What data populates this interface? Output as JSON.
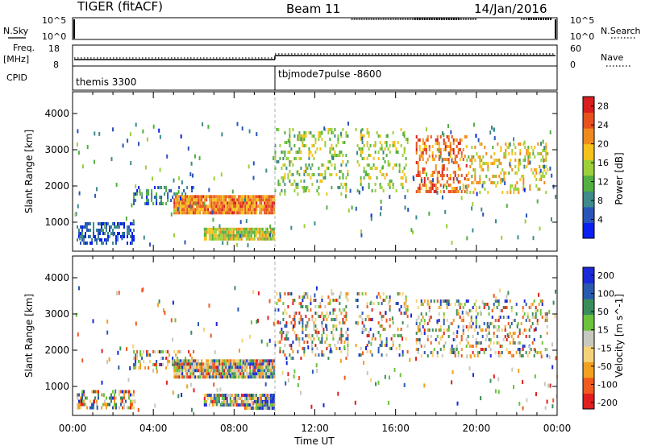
{
  "header": {
    "title": "TIGER (fitACF)",
    "beam": "Beam 11",
    "date": "14/Jan/2016"
  },
  "nsky_panel": {
    "left_label": "N.Sky",
    "ticks": [
      "10^5",
      "10^0"
    ],
    "right_label": "N.Search",
    "right_ticks": [
      "10^5",
      "10^0"
    ]
  },
  "freq_panel": {
    "left_label_line1": "Freq.",
    "left_label_line2": "[MHz]",
    "ticks": [
      "18",
      "8"
    ],
    "right_label": "Nave",
    "right_ticks": [
      "60",
      "0"
    ]
  },
  "cpid_panel": {
    "label": "CPID",
    "modes": [
      {
        "name": "themis 3300",
        "start_hour": 0
      },
      {
        "name": "tbjmode7pulse -8600",
        "start_hour": 10
      }
    ]
  },
  "time_axis": {
    "xlabel": "Time UT",
    "ticks": [
      "00:00",
      "04:00",
      "08:00",
      "12:00",
      "16:00",
      "20:00",
      "00:00"
    ]
  },
  "chart_data": [
    {
      "type": "heatmap",
      "title": "",
      "xlabel": "Time UT",
      "ylabel": "Slant Range [km]",
      "xlim": [
        0,
        24
      ],
      "ylim": [
        200,
        4600
      ],
      "yticks": [
        1000,
        2000,
        3000,
        4000
      ],
      "colorbar": {
        "label": "Power [dB]",
        "ticks": [
          "4",
          "8",
          "12",
          "16",
          "20",
          "24",
          "28"
        ],
        "range": [
          0,
          30
        ],
        "colors": [
          "#0a1ff0",
          "#2a55b8",
          "#3f8a8a",
          "#52b040",
          "#9ccf3a",
          "#f5c21a",
          "#f08a1e",
          "#e8501e",
          "#d81e1e"
        ]
      },
      "bands": [
        {
          "t0": 0.2,
          "t1": 3.0,
          "r0": 400,
          "r1": 1000,
          "level": 0.18,
          "density": 0.55
        },
        {
          "t0": 3.0,
          "t1": 6.0,
          "r0": 1500,
          "r1": 2000,
          "level": 0.25,
          "density": 0.35
        },
        {
          "t0": 5.0,
          "t1": 10.0,
          "r0": 1300,
          "r1": 1750,
          "level": 0.75,
          "density": 0.95
        },
        {
          "t0": 6.5,
          "t1": 10.0,
          "r0": 550,
          "r1": 850,
          "level": 0.55,
          "density": 0.9
        },
        {
          "t0": 10.0,
          "t1": 13.6,
          "r0": 1800,
          "r1": 3600,
          "level": 0.45,
          "density": 0.25
        },
        {
          "t0": 14.0,
          "t1": 16.6,
          "r0": 1900,
          "r1": 3600,
          "level": 0.5,
          "density": 0.2
        },
        {
          "t0": 17.0,
          "t1": 19.5,
          "r0": 1800,
          "r1": 3400,
          "level": 0.78,
          "density": 0.35
        },
        {
          "t0": 19.5,
          "t1": 23.5,
          "r0": 1800,
          "r1": 3200,
          "level": 0.6,
          "density": 0.25
        }
      ]
    },
    {
      "type": "heatmap",
      "title": "",
      "xlabel": "Time UT",
      "ylabel": "Slant Range [km]",
      "xlim": [
        0,
        24
      ],
      "ylim": [
        200,
        4600
      ],
      "yticks": [
        1000,
        2000,
        3000,
        4000
      ],
      "colorbar": {
        "label": "Velocity [m s^-1]",
        "ticks": [
          "200",
          "100",
          "50",
          "15",
          "-15",
          "-50",
          "-100",
          "-200"
        ],
        "range": [
          -250,
          250
        ],
        "colors": [
          "#e01e1e",
          "#f05a1e",
          "#f2a01e",
          "#f5d27a",
          "#c8c8c0",
          "#6cc23a",
          "#3a8c5a",
          "#2a5ab0",
          "#1a2ad8"
        ]
      },
      "bands": [
        {
          "t0": 0.2,
          "t1": 3.0,
          "r0": 400,
          "r1": 900,
          "level": 0.5,
          "density": 0.4
        },
        {
          "t0": 3.0,
          "t1": 6.0,
          "r0": 1500,
          "r1": 2000,
          "level": 0.5,
          "density": 0.35
        },
        {
          "t0": 5.0,
          "t1": 10.0,
          "r0": 1250,
          "r1": 1750,
          "level": 0.5,
          "density": 0.95
        },
        {
          "t0": 6.5,
          "t1": 8.5,
          "r0": 450,
          "r1": 800,
          "level": 0.5,
          "density": 0.85
        },
        {
          "t0": 8.5,
          "t1": 10.0,
          "r0": 400,
          "r1": 800,
          "level": 0.62,
          "density": 0.9
        },
        {
          "t0": 10.0,
          "t1": 13.6,
          "r0": 1800,
          "r1": 3600,
          "level": 0.5,
          "density": 0.25
        },
        {
          "t0": 14.0,
          "t1": 16.6,
          "r0": 1900,
          "r1": 3600,
          "level": 0.5,
          "density": 0.2
        },
        {
          "t0": 17.0,
          "t1": 23.5,
          "r0": 1800,
          "r1": 3400,
          "level": 0.5,
          "density": 0.25
        }
      ]
    }
  ]
}
